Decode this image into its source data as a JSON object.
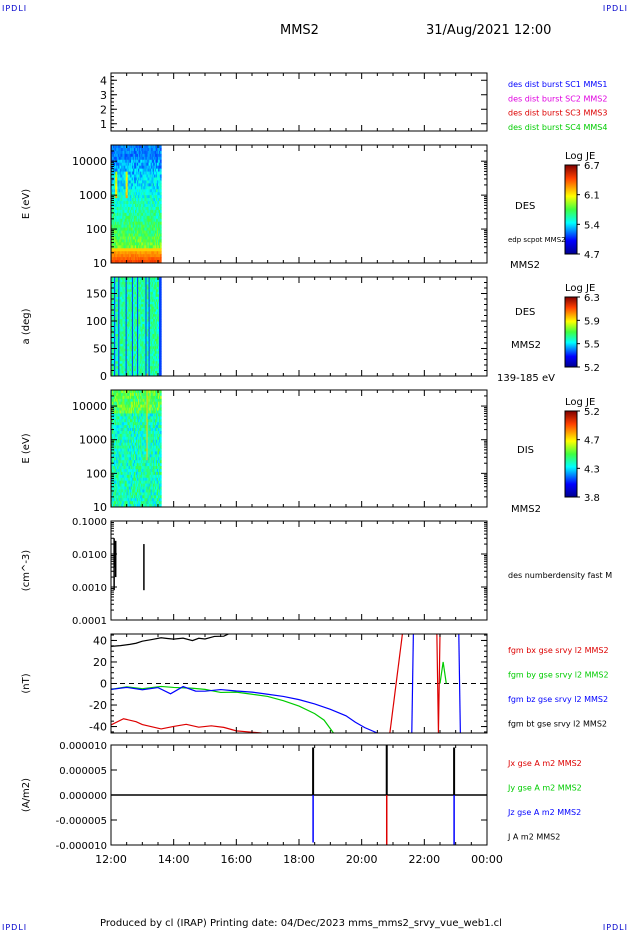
{
  "corner_labels": [
    "IPDLI",
    "IPDLI",
    "IPDLI",
    "IPDLI"
  ],
  "header": {
    "spacecraft": "MMS2",
    "datetime": "31/Aug/2021 12:00"
  },
  "footer": "Produced by cl (IRAP)   Printing date: 04/Dec/2023   mms_mms2_srvy_vue_web1.cl",
  "colors": {
    "blue": "#0000ff",
    "magenta": "#e000e0",
    "red": "#dd0000",
    "green": "#00cc00",
    "black": "#000000"
  },
  "chart_data": [
    {
      "type": "line",
      "id": "sc-availability",
      "ylim": [
        0.5,
        4.5
      ],
      "yticks": [
        "1",
        "2",
        "3",
        "4"
      ],
      "legend": [
        {
          "label": "des dist burst SC1 MMS1",
          "color": "#0000ff"
        },
        {
          "label": "des dist burst SC2 MMS2",
          "color": "#e000e0"
        },
        {
          "label": "des dist burst SC3 MMS3",
          "color": "#dd0000"
        },
        {
          "label": "des dist burst SC4 MMS4",
          "color": "#00cc00"
        }
      ],
      "series": []
    },
    {
      "type": "heatmap",
      "id": "des-energy",
      "ylabel": "E (eV)",
      "scale": "log",
      "ylim": [
        10,
        30000
      ],
      "yticks": [
        "10",
        "100",
        "1000",
        "10000"
      ],
      "xlim_data": [
        "12:00",
        "13:36"
      ],
      "colorbar": {
        "title": "Log JE",
        "ticks": [
          "6.7",
          "6.1",
          "5.4",
          "4.7"
        ]
      },
      "labels": [
        "DES",
        "edp scpot MMS2",
        "MMS2"
      ]
    },
    {
      "type": "heatmap",
      "id": "des-pitch",
      "ylabel": "a (deg)",
      "ylim": [
        0,
        180
      ],
      "yticks": [
        "0",
        "50",
        "100",
        "150"
      ],
      "xlim_data": [
        "12:00",
        "13:36"
      ],
      "colorbar": {
        "title": "Log JE",
        "ticks": [
          "6.3",
          "5.9",
          "5.5",
          "5.2"
        ]
      },
      "labels": [
        "DES",
        "MMS2",
        "139-185 eV"
      ]
    },
    {
      "type": "heatmap",
      "id": "dis-energy",
      "ylabel": "E (eV)",
      "scale": "log",
      "ylim": [
        10,
        30000
      ],
      "yticks": [
        "10",
        "100",
        "1000",
        "10000"
      ],
      "xlim_data": [
        "12:00",
        "13:36"
      ],
      "colorbar": {
        "title": "Log JE",
        "ticks": [
          "5.2",
          "4.7",
          "4.3",
          "3.8"
        ]
      },
      "labels": [
        "DIS",
        "MMS2"
      ]
    },
    {
      "type": "line",
      "id": "density",
      "ylabel": "(cm^-3)",
      "scale": "log",
      "ylim": [
        0.0001,
        0.1
      ],
      "yticks": [
        "0.0001",
        "0.0010",
        "0.0100",
        "0.1000"
      ],
      "legend": [
        {
          "label": "des numberdensity fast M",
          "color": "#000000"
        }
      ],
      "series": [
        {
          "color": "#000000",
          "segments": [
            [
              [
                0.1,
                0.0008
              ],
              [
                0.1,
                0.03
              ]
            ],
            [
              [
                0.15,
                0.002
              ],
              [
                0.15,
                0.025
              ]
            ],
            [
              [
                1.05,
                0.0008
              ],
              [
                1.05,
                0.02
              ]
            ]
          ]
        }
      ]
    },
    {
      "type": "line",
      "id": "fgm",
      "ylabel": "(nT)",
      "ylim": [
        -46,
        46
      ],
      "yticks": [
        "-40",
        "-20",
        "0",
        "20",
        "40"
      ],
      "dashed_zero": true,
      "legend": [
        {
          "label": "fgm bx gse srvy l2 MMS2",
          "color": "#dd0000"
        },
        {
          "label": "fgm by gse srvy l2 MMS2",
          "color": "#00cc00"
        },
        {
          "label": "fgm bz gse srvy l2 MMS2",
          "color": "#0000ff"
        },
        {
          "label": "fgm bt gse srvy l2 MMS2",
          "color": "#000000"
        }
      ],
      "series": [
        {
          "name": "bt",
          "color": "#000000",
          "x": [
            0,
            0.3,
            0.6,
            0.8,
            1.0,
            1.3,
            1.6,
            1.8,
            2.0,
            2.3,
            2.6,
            2.8,
            3.0,
            3.3,
            3.6,
            3.9,
            4.0
          ],
          "y": [
            36,
            36,
            37,
            38,
            40,
            41,
            43,
            42,
            41,
            42,
            40,
            43,
            41,
            43,
            45,
            47,
            48
          ]
        },
        {
          "name": "bx",
          "color": "#dd0000",
          "x": [
            0,
            0.4,
            0.8,
            1.0,
            1.6,
            2.0,
            2.4,
            2.8,
            3.2,
            3.6,
            4.0,
            4.4,
            4.8,
            5.0
          ],
          "y": [
            -37,
            -34,
            -36,
            -38,
            -41,
            -40,
            -39,
            -41,
            -39,
            -42,
            -44,
            -45,
            -46,
            -47
          ]
        },
        {
          "name": "by",
          "color": "#00cc00",
          "x": [
            0,
            0.5,
            1.0,
            1.6,
            2.0,
            2.6,
            3.0,
            3.5,
            4.0,
            4.5,
            5.0,
            5.5,
            6.0,
            6.5,
            6.8,
            7.1
          ],
          "y": [
            -4,
            -4.5,
            -5,
            -2,
            -5,
            -5,
            -6,
            -7,
            -8,
            -10,
            -12,
            -16,
            -21,
            -28,
            -34,
            -46
          ]
        },
        {
          "name": "bz",
          "color": "#0000ff",
          "x": [
            0,
            0.5,
            1.0,
            1.5,
            1.9,
            2.3,
            2.7,
            3.0,
            3.5,
            4.0,
            4.5,
            5.0,
            5.5,
            6.0,
            6.5,
            7.0,
            7.5,
            7.8,
            8.1,
            8.5
          ],
          "y": [
            -4,
            -5,
            -6,
            -4,
            -9,
            -3,
            -8,
            -6,
            -6,
            -7,
            -8,
            -10,
            -12,
            -15,
            -19,
            -24,
            -30,
            -36,
            -41,
            -46
          ]
        },
        {
          "name": "bx-late",
          "color": "#dd0000",
          "x": [
            8.9,
            9.3
          ],
          "y": [
            -46,
            46
          ]
        },
        {
          "name": "by-late",
          "color": "#00cc00",
          "x": [
            10.5,
            10.6,
            10.7
          ],
          "y": [
            0,
            20,
            0
          ]
        },
        {
          "name": "bz-late",
          "color": "#0000ff",
          "x": [
            9.6,
            9.65
          ],
          "y": [
            -46,
            46
          ]
        },
        {
          "name": "bx-late2",
          "color": "#dd0000",
          "x": [
            10.4,
            10.45,
            10.5
          ],
          "y": [
            46,
            -46,
            46
          ]
        },
        {
          "name": "bz-late2",
          "color": "#0000ff",
          "x": [
            11.1,
            11.15
          ],
          "y": [
            46,
            -46
          ]
        }
      ]
    },
    {
      "type": "line",
      "id": "current",
      "ylabel": "(A/m2)",
      "ylim": [
        -1e-05,
        1e-05
      ],
      "yticks": [
        "-0.000010",
        "-0.000005",
        "0.000000",
        "0.000005",
        "0.000010"
      ],
      "legend": [
        {
          "label": "Jx gse A m2 MMS2",
          "color": "#dd0000"
        },
        {
          "label": "Jy gse A m2 MMS2",
          "color": "#00cc00"
        },
        {
          "label": "Jz gse A m2 MMS2",
          "color": "#0000ff"
        },
        {
          "label": "J A m2 MMS2",
          "color": "#000000"
        }
      ],
      "spikes": [
        {
          "x": 6.45,
          "up": 9.5e-06,
          "down": -9.5e-06,
          "upColor": "#000000",
          "downColor": "#0000ff"
        },
        {
          "x": 8.8,
          "up": 1e-05,
          "down": -1e-05,
          "upColor": "#000000",
          "downColor": "#dd0000"
        },
        {
          "x": 10.95,
          "up": 9.5e-06,
          "down": -1e-05,
          "upColor": "#000000",
          "downColor": "#0000ff"
        }
      ]
    }
  ],
  "time_axis": {
    "ticks": [
      "12:00",
      "14:00",
      "16:00",
      "18:00",
      "20:00",
      "22:00",
      "00:00"
    ],
    "range_hours": [
      0,
      12
    ]
  }
}
